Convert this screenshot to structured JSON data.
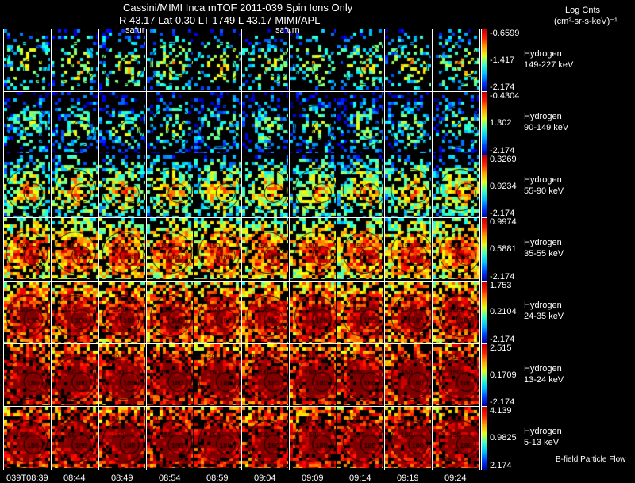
{
  "header": {
    "title": "Cassini/MIMI Inca mTOF  2011-039   Spin   Ions Only",
    "subtitle": "R          43.17 Lat 0.30 LT 1749 L           43.17  MIMI/APL",
    "marker_labels": [
      "satur",
      "saturn"
    ]
  },
  "units": {
    "line1": "Log Cnts",
    "line2": "(cm²-sr-s-keV)⁻¹"
  },
  "footer_note": "B-field Particle Flow",
  "chart_data": {
    "type": "heatmap",
    "title": "Cassini/MIMI Inca mTOF  2011-039   Spin   Ions Only",
    "time_labels": [
      "039T08:39",
      "08:44",
      "08:49",
      "08:54",
      "08:59",
      "09:04",
      "09:09",
      "09:14",
      "09:19",
      "09:24"
    ],
    "contour_labels": [
      "120",
      "150",
      "180"
    ],
    "rows": [
      {
        "species": "Hydrogen",
        "energy": "149-227 keV",
        "cbar_max": "-0.6599",
        "cbar_mid": "-1.417",
        "cbar_min": "-2.174",
        "mean_level": 0.3,
        "coverage": 0.35
      },
      {
        "species": "Hydrogen",
        "energy": "90-149 keV",
        "cbar_max": "-0.4304",
        "cbar_mid": "1.302",
        "cbar_min": "-2.174",
        "mean_level": 0.2,
        "coverage": 0.45
      },
      {
        "species": "Hydrogen",
        "energy": "55-90 keV",
        "cbar_max": "0.3269",
        "cbar_mid": "0.9234",
        "cbar_min": "-2.174",
        "mean_level": 0.4,
        "coverage": 0.65
      },
      {
        "species": "Hydrogen",
        "energy": "35-55 keV",
        "cbar_max": "0.9974",
        "cbar_mid": "0.5881",
        "cbar_min": "-2.174",
        "mean_level": 0.6,
        "coverage": 0.85
      },
      {
        "species": "Hydrogen",
        "energy": "24-35 keV",
        "cbar_max": "1.753",
        "cbar_mid": "0.2104",
        "cbar_min": "-2.174",
        "mean_level": 0.75,
        "coverage": 0.92
      },
      {
        "species": "Hydrogen",
        "energy": "13-24 keV",
        "cbar_max": "2.515",
        "cbar_mid": "0.1709",
        "cbar_min": "-2.174",
        "mean_level": 0.85,
        "coverage": 0.95
      },
      {
        "species": "Hydrogen",
        "energy": "5-13 keV",
        "cbar_max": "4.139",
        "cbar_mid": "0.9825",
        "cbar_min": "2.174",
        "mean_level": 0.85,
        "coverage": 0.95
      }
    ]
  }
}
